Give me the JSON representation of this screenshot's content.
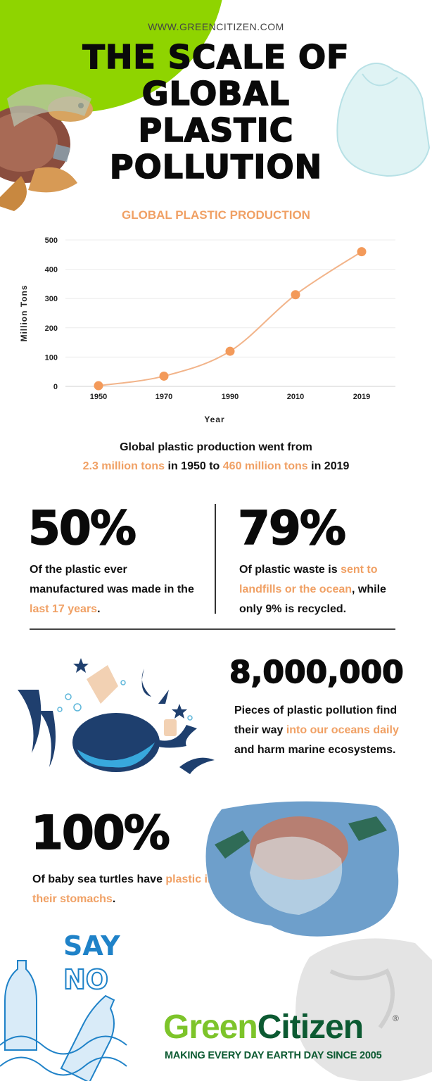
{
  "header": {
    "site_url": "WWW.GREENCITIZEN.COM",
    "title_lines": [
      "THE SCALE OF",
      "GLOBAL",
      "PLASTIC",
      "POLLUTION"
    ]
  },
  "chart_section": {
    "title": "GLOBAL PLASTIC PRODUCTION"
  },
  "chart_data": {
    "type": "line",
    "title": "GLOBAL PLASTIC PRODUCTION",
    "xlabel": "Year",
    "ylabel": "Million Tons",
    "categories": [
      "1950",
      "1970",
      "1990",
      "2010",
      "2019"
    ],
    "values": [
      2.3,
      35,
      120,
      313,
      460
    ],
    "yticks": [
      "0",
      "100",
      "200",
      "300",
      "400",
      "500"
    ],
    "ylim": [
      0,
      500
    ],
    "grid": true,
    "color": "#f39a5a"
  },
  "summary": {
    "line1": "Global plastic production went from",
    "part_a": "2.3 million tons",
    "part_b": " in 1950 to ",
    "part_c": "460 million tons",
    "part_d": " in 2019"
  },
  "stats": {
    "left": {
      "value": "50%",
      "text_a": "Of the plastic ever manufactured was made in the ",
      "text_hl": "last 17 years",
      "text_b": "."
    },
    "right": {
      "value": "79%",
      "text_a": "Of plastic waste is ",
      "text_hl": "sent to landfills or the ocean",
      "text_b": ", while only 9% is recycled."
    },
    "ocean": {
      "value": "8,000,000",
      "text_a": "Pieces of plastic pollution find their way ",
      "text_hl": "into our oceans daily",
      "text_b": " and harm marine ecosystems."
    },
    "turtles": {
      "value": "100%",
      "text_a": "Of baby sea turtles have ",
      "text_hl": "plastic in their stomachs",
      "text_b": "."
    }
  },
  "footer": {
    "say": "SAY",
    "no": "NO",
    "logo_green": "Green",
    "logo_dark": "Citizen",
    "registered": "®",
    "tagline": "MAKING EVERY DAY EARTH DAY SINCE 2005"
  },
  "colors": {
    "accent": "#f0a064",
    "brand_green": "#8fd400",
    "logo_dark_green": "#0c5a32",
    "say_no_blue": "#1f82c8"
  }
}
